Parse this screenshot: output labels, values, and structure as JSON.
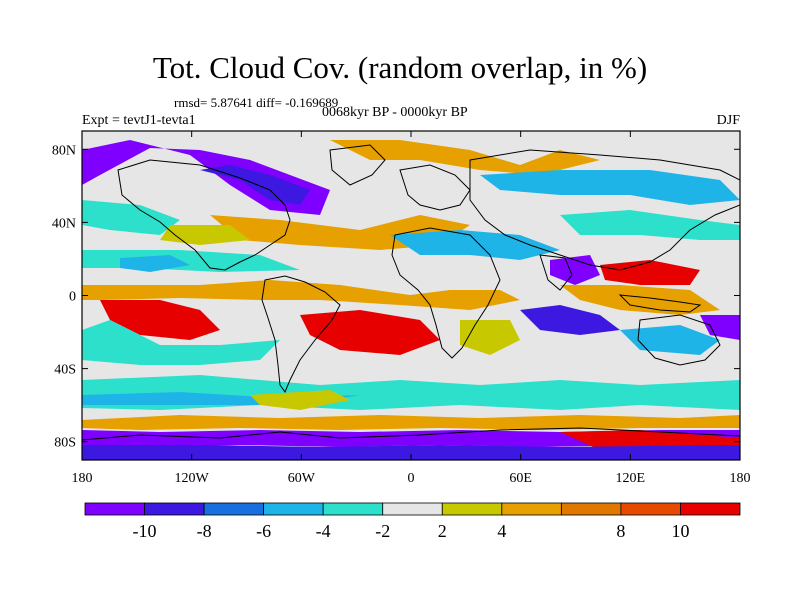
{
  "header": {
    "title": "Tot. Cloud Cov. (random overlap, in %)",
    "stats": "rmsd= 5.87641 diff= -0.169689",
    "experiment": "Expt = tevtJ1-tevta1",
    "period": "0068kyr BP - 0000kyr BP",
    "season": "DJF"
  },
  "map": {
    "lon_range": [
      -180,
      180
    ],
    "lat_range": [
      -90,
      90
    ],
    "x_ticks": [
      {
        "value": -180,
        "label": "180"
      },
      {
        "value": -120,
        "label": "120W"
      },
      {
        "value": -60,
        "label": "60W"
      },
      {
        "value": 0,
        "label": "0"
      },
      {
        "value": 60,
        "label": "60E"
      },
      {
        "value": 120,
        "label": "120E"
      },
      {
        "value": 180,
        "label": "180"
      }
    ],
    "y_ticks": [
      {
        "value": 80,
        "label": "80N"
      },
      {
        "value": 40,
        "label": "40N"
      },
      {
        "value": 0,
        "label": "0"
      },
      {
        "value": -40,
        "label": "40S"
      },
      {
        "value": -80,
        "label": "80S"
      }
    ]
  },
  "colorbar": {
    "colors": [
      "#7f00ff",
      "#3d18e0",
      "#1a6fe0",
      "#1fb4e8",
      "#2de0cc",
      "#e6e6e6",
      "#c8c800",
      "#e6a000",
      "#e07800",
      "#e64a00",
      "#e60000"
    ],
    "labels": [
      "-10",
      "-8",
      "-6",
      "-4",
      "-2",
      "2",
      "4",
      "8",
      "10"
    ]
  }
}
